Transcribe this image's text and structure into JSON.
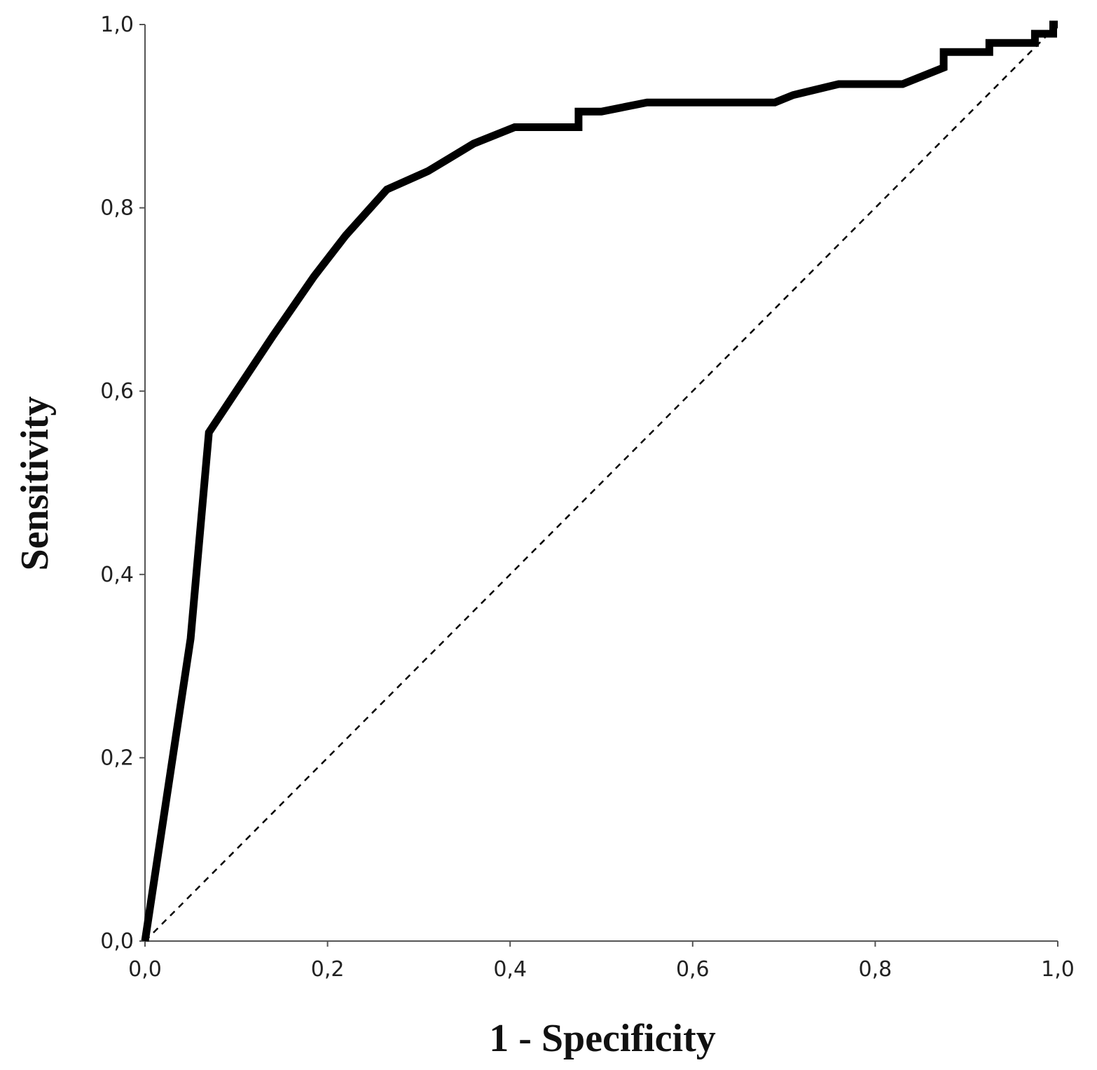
{
  "chart_data": {
    "type": "line",
    "title": "",
    "xlabel": "1 - Specificity",
    "ylabel": "Sensitivity",
    "xlim": [
      0,
      1
    ],
    "ylim": [
      0,
      1
    ],
    "x_ticks": [
      "0,0",
      "0,2",
      "0,4",
      "0,6",
      "0,8",
      "1,0"
    ],
    "y_ticks": [
      "0,0",
      "0,2",
      "0,4",
      "0,6",
      "0,8",
      "1,0"
    ],
    "x_tick_values": [
      0,
      0.2,
      0.4,
      0.6,
      0.8,
      1.0
    ],
    "y_tick_values": [
      0,
      0.2,
      0.4,
      0.6,
      0.8,
      1.0
    ],
    "grid": false,
    "legend": "none",
    "series": [
      {
        "style": "solid",
        "color": "#000000",
        "points": [
          [
            0.0,
            0.0
          ],
          [
            0.05,
            0.33
          ],
          [
            0.07,
            0.555
          ],
          [
            0.1,
            0.6
          ],
          [
            0.14,
            0.66
          ],
          [
            0.185,
            0.725
          ],
          [
            0.22,
            0.77
          ],
          [
            0.265,
            0.82
          ],
          [
            0.31,
            0.84
          ],
          [
            0.36,
            0.87
          ],
          [
            0.405,
            0.888
          ],
          [
            0.475,
            0.888
          ],
          [
            0.475,
            0.905
          ],
          [
            0.5,
            0.905
          ],
          [
            0.55,
            0.915
          ],
          [
            0.69,
            0.915
          ],
          [
            0.71,
            0.923
          ],
          [
            0.76,
            0.935
          ],
          [
            0.83,
            0.935
          ],
          [
            0.875,
            0.953
          ],
          [
            0.875,
            0.97
          ],
          [
            0.925,
            0.97
          ],
          [
            0.925,
            0.98
          ],
          [
            0.975,
            0.98
          ],
          [
            0.975,
            0.99
          ],
          [
            0.995,
            0.99
          ],
          [
            0.995,
            1.0
          ],
          [
            1.0,
            1.0
          ]
        ]
      },
      {
        "style": "dashed",
        "color": "#000000",
        "points": [
          [
            0,
            0
          ],
          [
            1,
            1
          ]
        ]
      }
    ]
  }
}
